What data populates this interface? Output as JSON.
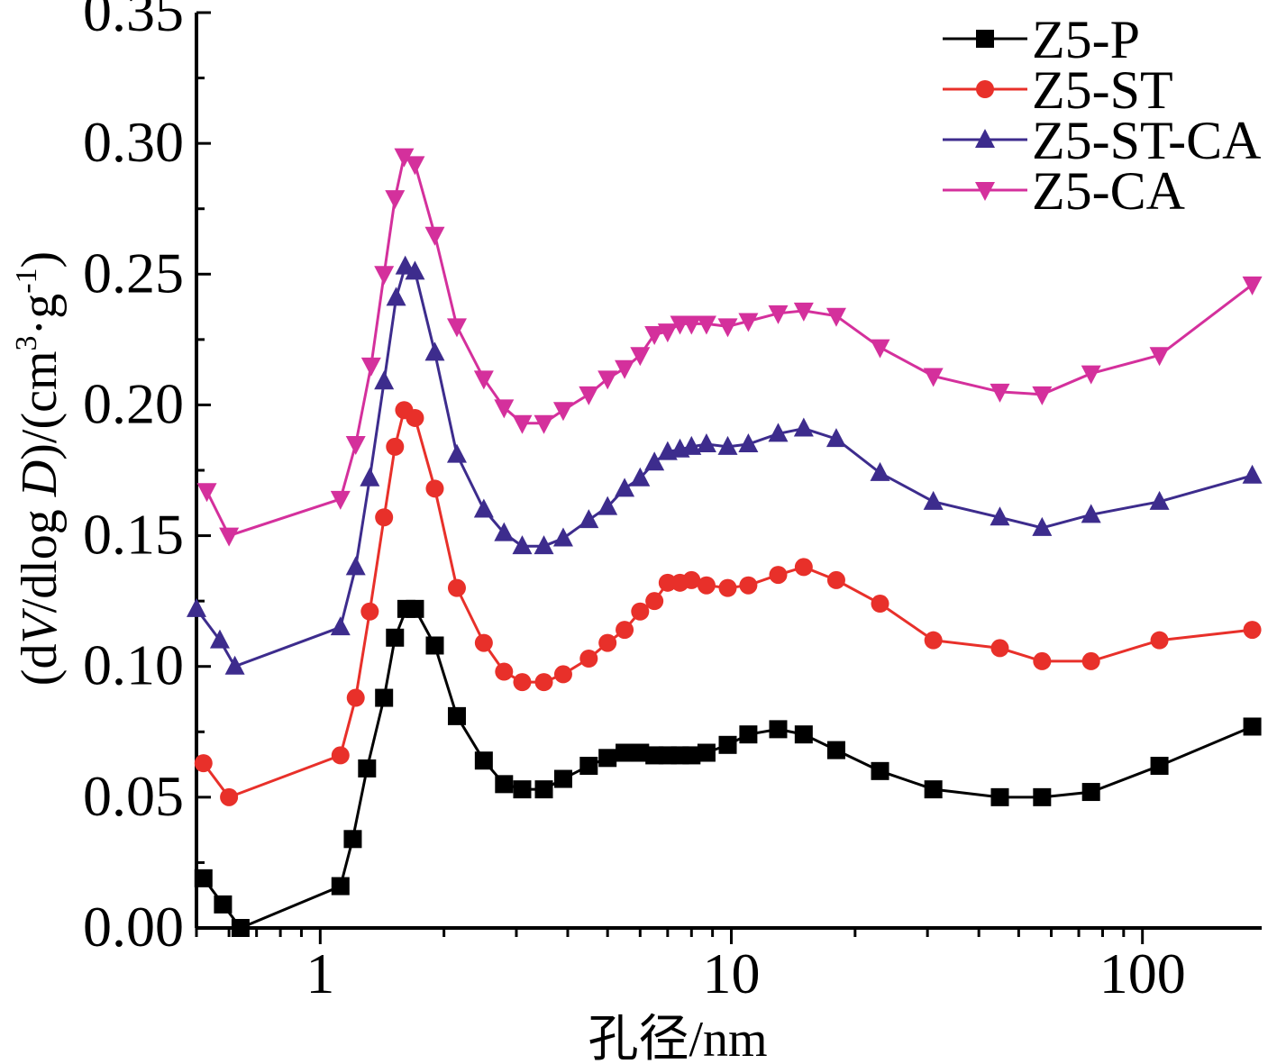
{
  "chart_data": {
    "type": "line",
    "title": "",
    "xlabel": "孔径/nm",
    "ylabel_parts": [
      "(d",
      "V",
      "/dlog ",
      "D",
      ")/(cm",
      "3",
      "·g",
      "-1",
      ")"
    ],
    "xscale": "log",
    "xlim": [
      0.5,
      195
    ],
    "ylim": [
      0.0,
      0.35
    ],
    "x_ticks": [
      1,
      10,
      100
    ],
    "x_tick_labels": [
      "1",
      "10",
      "100"
    ],
    "y_ticks": [
      0.0,
      0.05,
      0.1,
      0.15,
      0.2,
      0.25,
      0.3,
      0.35
    ],
    "y_tick_labels": [
      "0.00",
      "0.05",
      "0.10",
      "0.15",
      "0.20",
      "0.25",
      "0.30",
      "0.35"
    ],
    "grid": false,
    "legend_position": "top-right",
    "series": [
      {
        "name": "Z5-P",
        "color": "#000000",
        "marker": "square",
        "x": [
          0.52,
          0.58,
          0.64,
          1.12,
          1.2,
          1.3,
          1.43,
          1.52,
          1.62,
          1.7,
          1.9,
          2.15,
          2.5,
          2.8,
          3.1,
          3.5,
          3.9,
          4.5,
          5.0,
          5.5,
          6.0,
          6.5,
          7.0,
          7.5,
          8.0,
          8.7,
          9.8,
          11.0,
          13.0,
          15.0,
          18.0,
          23.0,
          31.0,
          45.0,
          57.0,
          75.0,
          110.0,
          185.0
        ],
        "y": [
          0.019,
          0.009,
          0.0,
          0.016,
          0.034,
          0.061,
          0.088,
          0.111,
          0.122,
          0.122,
          0.108,
          0.081,
          0.064,
          0.055,
          0.053,
          0.053,
          0.057,
          0.062,
          0.065,
          0.067,
          0.067,
          0.066,
          0.066,
          0.066,
          0.066,
          0.067,
          0.07,
          0.074,
          0.076,
          0.074,
          0.068,
          0.06,
          0.053,
          0.05,
          0.05,
          0.052,
          0.062,
          0.077
        ]
      },
      {
        "name": "Z5-ST",
        "color": "#e8302a",
        "marker": "circle",
        "x": [
          0.52,
          0.6,
          1.12,
          1.22,
          1.32,
          1.43,
          1.52,
          1.6,
          1.7,
          1.9,
          2.15,
          2.5,
          2.8,
          3.1,
          3.5,
          3.9,
          4.5,
          5.0,
          5.5,
          6.0,
          6.5,
          7.0,
          7.5,
          8.0,
          8.7,
          9.8,
          11.0,
          13.0,
          15.0,
          18.0,
          23.0,
          31.0,
          45.0,
          57.0,
          75.0,
          110.0,
          185.0
        ],
        "y": [
          0.063,
          0.05,
          0.066,
          0.088,
          0.121,
          0.157,
          0.184,
          0.198,
          0.195,
          0.168,
          0.13,
          0.109,
          0.098,
          0.094,
          0.094,
          0.097,
          0.103,
          0.109,
          0.114,
          0.121,
          0.125,
          0.132,
          0.132,
          0.133,
          0.131,
          0.13,
          0.131,
          0.135,
          0.138,
          0.133,
          0.124,
          0.11,
          0.107,
          0.102,
          0.102,
          0.11,
          0.114
        ]
      },
      {
        "name": "Z5-ST-CA",
        "color": "#3d2c8d",
        "marker": "triangle-up",
        "x": [
          0.5,
          0.57,
          0.62,
          1.12,
          1.22,
          1.32,
          1.43,
          1.53,
          1.61,
          1.7,
          1.9,
          2.15,
          2.5,
          2.8,
          3.1,
          3.5,
          3.9,
          4.5,
          5.0,
          5.5,
          6.0,
          6.5,
          7.0,
          7.5,
          8.0,
          8.7,
          9.8,
          11.0,
          13.0,
          15.0,
          18.0,
          23.0,
          31.0,
          45.0,
          57.0,
          75.0,
          110.0,
          185.0
        ],
        "y": [
          0.122,
          0.11,
          0.1,
          0.115,
          0.138,
          0.172,
          0.209,
          0.241,
          0.253,
          0.251,
          0.22,
          0.181,
          0.16,
          0.151,
          0.146,
          0.146,
          0.149,
          0.156,
          0.161,
          0.168,
          0.172,
          0.178,
          0.182,
          0.183,
          0.184,
          0.185,
          0.184,
          0.185,
          0.189,
          0.191,
          0.187,
          0.174,
          0.163,
          0.157,
          0.153,
          0.158,
          0.163,
          0.173
        ]
      },
      {
        "name": "Z5-CA",
        "color": "#d4309c",
        "marker": "triangle-down",
        "x": [
          0.53,
          0.6,
          1.12,
          1.22,
          1.33,
          1.43,
          1.52,
          1.6,
          1.7,
          1.9,
          2.15,
          2.5,
          2.8,
          3.1,
          3.5,
          3.9,
          4.5,
          5.0,
          5.5,
          6.0,
          6.5,
          7.0,
          7.5,
          8.0,
          8.7,
          9.8,
          11.0,
          13.0,
          15.0,
          18.0,
          23.0,
          31.0,
          45.0,
          57.0,
          75.0,
          110.0,
          185.0
        ],
        "y": [
          0.167,
          0.15,
          0.164,
          0.185,
          0.215,
          0.25,
          0.279,
          0.295,
          0.292,
          0.265,
          0.23,
          0.21,
          0.199,
          0.193,
          0.193,
          0.198,
          0.204,
          0.21,
          0.214,
          0.219,
          0.227,
          0.228,
          0.231,
          0.231,
          0.231,
          0.23,
          0.232,
          0.235,
          0.236,
          0.234,
          0.222,
          0.211,
          0.205,
          0.204,
          0.212,
          0.219,
          0.246
        ]
      }
    ]
  }
}
